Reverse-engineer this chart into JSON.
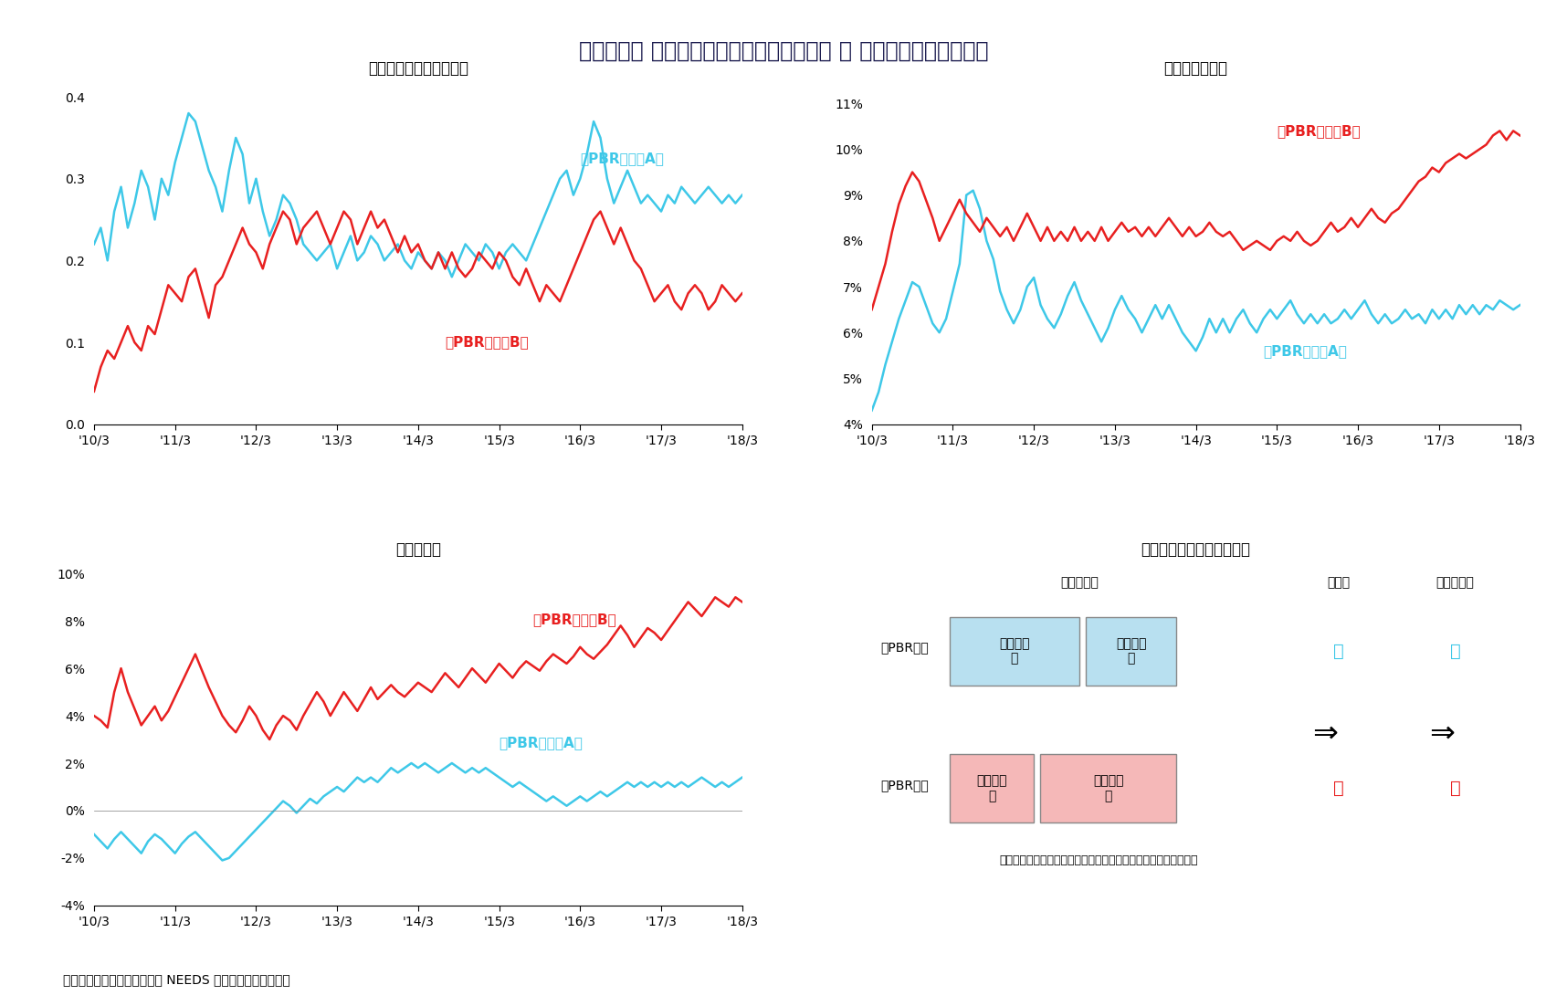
{
  "title": "【図表３】 資本コストと成長率の推計結果 と 資本コストのイメージ",
  "title_fontsize": 17,
  "subtitle1": "＜回帰分析の決定係数＞",
  "subtitle2": "＜資本コスト＞",
  "subtitle3": "＜成長率＞",
  "subtitle4": "＜資本コストのイメージ＞",
  "label_low_A": "低PBR銘柄（A）",
  "label_high_B": "高PBR銘柄（B）",
  "color_low": "#3EC8E8",
  "color_high": "#E82020",
  "footer": "（資料）東洋経済予想、日経 NEEDS のデータより筆者作成",
  "x_ticks": [
    "'10/3",
    "'11/3",
    "'12/3",
    "'13/3",
    "'14/3",
    "'15/3",
    "'16/3",
    "'17/3",
    "'18/3"
  ],
  "chart1_ylim": [
    0.0,
    0.42
  ],
  "chart1_yticks": [
    0.0,
    0.1,
    0.2,
    0.3,
    0.4
  ],
  "chart2_ylim": [
    0.04,
    0.115
  ],
  "chart2_yticks": [
    0.04,
    0.05,
    0.06,
    0.07,
    0.08,
    0.09,
    0.1,
    0.11
  ],
  "chart2_yticklabels": [
    "4%",
    "5%",
    "6%",
    "7%",
    "8%",
    "9%",
    "10%",
    "11%"
  ],
  "chart3_ylim": [
    -0.04,
    0.105
  ],
  "chart3_yticks": [
    -0.04,
    -0.02,
    0.0,
    0.02,
    0.04,
    0.06,
    0.08,
    0.1
  ],
  "chart3_yticklabels": [
    "-4%",
    "-2%",
    "0%",
    "2%",
    "4%",
    "6%",
    "8%",
    "10%"
  ],
  "chart1_low_A": [
    0.22,
    0.24,
    0.2,
    0.26,
    0.29,
    0.24,
    0.27,
    0.31,
    0.29,
    0.25,
    0.3,
    0.28,
    0.32,
    0.35,
    0.38,
    0.37,
    0.34,
    0.31,
    0.29,
    0.26,
    0.31,
    0.35,
    0.33,
    0.27,
    0.3,
    0.26,
    0.23,
    0.25,
    0.28,
    0.27,
    0.25,
    0.22,
    0.21,
    0.2,
    0.21,
    0.22,
    0.19,
    0.21,
    0.23,
    0.2,
    0.21,
    0.23,
    0.22,
    0.2,
    0.21,
    0.22,
    0.2,
    0.19,
    0.21,
    0.2,
    0.19,
    0.21,
    0.2,
    0.18,
    0.2,
    0.22,
    0.21,
    0.2,
    0.22,
    0.21,
    0.19,
    0.21,
    0.22,
    0.21,
    0.2,
    0.22,
    0.24,
    0.26,
    0.28,
    0.3,
    0.31,
    0.28,
    0.3,
    0.33,
    0.37,
    0.35,
    0.3,
    0.27,
    0.29,
    0.31,
    0.29,
    0.27,
    0.28,
    0.27,
    0.26,
    0.28,
    0.27,
    0.29,
    0.28,
    0.27,
    0.28,
    0.29,
    0.28,
    0.27,
    0.28,
    0.27,
    0.28
  ],
  "chart1_high_B": [
    0.04,
    0.07,
    0.09,
    0.08,
    0.1,
    0.12,
    0.1,
    0.09,
    0.12,
    0.11,
    0.14,
    0.17,
    0.16,
    0.15,
    0.18,
    0.19,
    0.16,
    0.13,
    0.17,
    0.18,
    0.2,
    0.22,
    0.24,
    0.22,
    0.21,
    0.19,
    0.22,
    0.24,
    0.26,
    0.25,
    0.22,
    0.24,
    0.25,
    0.26,
    0.24,
    0.22,
    0.24,
    0.26,
    0.25,
    0.22,
    0.24,
    0.26,
    0.24,
    0.25,
    0.23,
    0.21,
    0.23,
    0.21,
    0.22,
    0.2,
    0.19,
    0.21,
    0.19,
    0.21,
    0.19,
    0.18,
    0.19,
    0.21,
    0.2,
    0.19,
    0.21,
    0.2,
    0.18,
    0.17,
    0.19,
    0.17,
    0.15,
    0.17,
    0.16,
    0.15,
    0.17,
    0.19,
    0.21,
    0.23,
    0.25,
    0.26,
    0.24,
    0.22,
    0.24,
    0.22,
    0.2,
    0.19,
    0.17,
    0.15,
    0.16,
    0.17,
    0.15,
    0.14,
    0.16,
    0.17,
    0.16,
    0.14,
    0.15,
    0.17,
    0.16,
    0.15,
    0.16
  ],
  "chart2_low_A": [
    0.043,
    0.047,
    0.053,
    0.058,
    0.063,
    0.067,
    0.071,
    0.07,
    0.066,
    0.062,
    0.06,
    0.063,
    0.069,
    0.075,
    0.09,
    0.091,
    0.087,
    0.08,
    0.076,
    0.069,
    0.065,
    0.062,
    0.065,
    0.07,
    0.072,
    0.066,
    0.063,
    0.061,
    0.064,
    0.068,
    0.071,
    0.067,
    0.064,
    0.061,
    0.058,
    0.061,
    0.065,
    0.068,
    0.065,
    0.063,
    0.06,
    0.063,
    0.066,
    0.063,
    0.066,
    0.063,
    0.06,
    0.058,
    0.056,
    0.059,
    0.063,
    0.06,
    0.063,
    0.06,
    0.063,
    0.065,
    0.062,
    0.06,
    0.063,
    0.065,
    0.063,
    0.065,
    0.067,
    0.064,
    0.062,
    0.064,
    0.062,
    0.064,
    0.062,
    0.063,
    0.065,
    0.063,
    0.065,
    0.067,
    0.064,
    0.062,
    0.064,
    0.062,
    0.063,
    0.065,
    0.063,
    0.064,
    0.062,
    0.065,
    0.063,
    0.065,
    0.063,
    0.066,
    0.064,
    0.066,
    0.064,
    0.066,
    0.065,
    0.067,
    0.066,
    0.065,
    0.066
  ],
  "chart2_high_B": [
    0.065,
    0.07,
    0.075,
    0.082,
    0.088,
    0.092,
    0.095,
    0.093,
    0.089,
    0.085,
    0.08,
    0.083,
    0.086,
    0.089,
    0.086,
    0.084,
    0.082,
    0.085,
    0.083,
    0.081,
    0.083,
    0.08,
    0.083,
    0.086,
    0.083,
    0.08,
    0.083,
    0.08,
    0.082,
    0.08,
    0.083,
    0.08,
    0.082,
    0.08,
    0.083,
    0.08,
    0.082,
    0.084,
    0.082,
    0.083,
    0.081,
    0.083,
    0.081,
    0.083,
    0.085,
    0.083,
    0.081,
    0.083,
    0.081,
    0.082,
    0.084,
    0.082,
    0.081,
    0.082,
    0.08,
    0.078,
    0.079,
    0.08,
    0.079,
    0.078,
    0.08,
    0.081,
    0.08,
    0.082,
    0.08,
    0.079,
    0.08,
    0.082,
    0.084,
    0.082,
    0.083,
    0.085,
    0.083,
    0.085,
    0.087,
    0.085,
    0.084,
    0.086,
    0.087,
    0.089,
    0.091,
    0.093,
    0.094,
    0.096,
    0.095,
    0.097,
    0.098,
    0.099,
    0.098,
    0.099,
    0.1,
    0.101,
    0.103,
    0.104,
    0.102,
    0.104,
    0.103
  ],
  "chart3_low_A": [
    -0.01,
    -0.013,
    -0.016,
    -0.012,
    -0.009,
    -0.012,
    -0.015,
    -0.018,
    -0.013,
    -0.01,
    -0.012,
    -0.015,
    -0.018,
    -0.014,
    -0.011,
    -0.009,
    -0.012,
    -0.015,
    -0.018,
    -0.021,
    -0.02,
    -0.017,
    -0.014,
    -0.011,
    -0.008,
    -0.005,
    -0.002,
    0.001,
    0.004,
    0.002,
    -0.001,
    0.002,
    0.005,
    0.003,
    0.006,
    0.008,
    0.01,
    0.008,
    0.011,
    0.014,
    0.012,
    0.014,
    0.012,
    0.015,
    0.018,
    0.016,
    0.018,
    0.02,
    0.018,
    0.02,
    0.018,
    0.016,
    0.018,
    0.02,
    0.018,
    0.016,
    0.018,
    0.016,
    0.018,
    0.016,
    0.014,
    0.012,
    0.01,
    0.012,
    0.01,
    0.008,
    0.006,
    0.004,
    0.006,
    0.004,
    0.002,
    0.004,
    0.006,
    0.004,
    0.006,
    0.008,
    0.006,
    0.008,
    0.01,
    0.012,
    0.01,
    0.012,
    0.01,
    0.012,
    0.01,
    0.012,
    0.01,
    0.012,
    0.01,
    0.012,
    0.014,
    0.012,
    0.01,
    0.012,
    0.01,
    0.012,
    0.014
  ],
  "chart3_high_B": [
    0.04,
    0.038,
    0.035,
    0.05,
    0.06,
    0.05,
    0.043,
    0.036,
    0.04,
    0.044,
    0.038,
    0.042,
    0.048,
    0.054,
    0.06,
    0.066,
    0.059,
    0.052,
    0.046,
    0.04,
    0.036,
    0.033,
    0.038,
    0.044,
    0.04,
    0.034,
    0.03,
    0.036,
    0.04,
    0.038,
    0.034,
    0.04,
    0.045,
    0.05,
    0.046,
    0.04,
    0.045,
    0.05,
    0.046,
    0.042,
    0.047,
    0.052,
    0.047,
    0.05,
    0.053,
    0.05,
    0.048,
    0.051,
    0.054,
    0.052,
    0.05,
    0.054,
    0.058,
    0.055,
    0.052,
    0.056,
    0.06,
    0.057,
    0.054,
    0.058,
    0.062,
    0.059,
    0.056,
    0.06,
    0.063,
    0.061,
    0.059,
    0.063,
    0.066,
    0.064,
    0.062,
    0.065,
    0.069,
    0.066,
    0.064,
    0.067,
    0.07,
    0.074,
    0.078,
    0.074,
    0.069,
    0.073,
    0.077,
    0.075,
    0.072,
    0.076,
    0.08,
    0.084,
    0.088,
    0.085,
    0.082,
    0.086,
    0.09,
    0.088,
    0.086,
    0.09,
    0.088
  ]
}
